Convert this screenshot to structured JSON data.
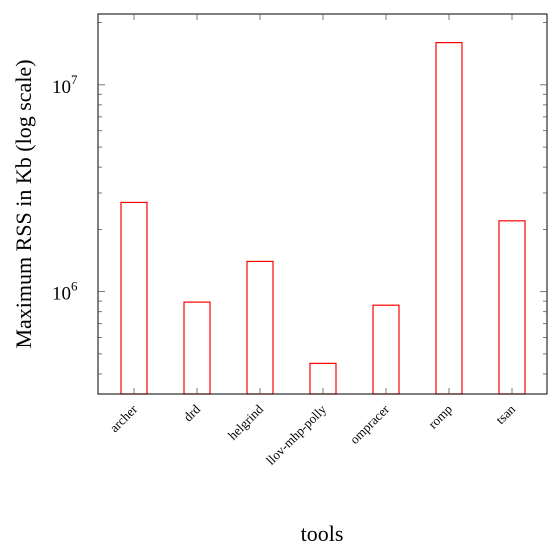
{
  "chart_data": {
    "type": "bar",
    "title": "",
    "xlabel": "tools",
    "ylabel": "Maximum RSS in Kb (log scale)",
    "yscale": "log",
    "ylim": [
      320000,
      22000000
    ],
    "y_ticks": [
      {
        "value": 1000000,
        "base": "10",
        "exp": "6"
      },
      {
        "value": 10000000,
        "base": "10",
        "exp": "7"
      }
    ],
    "categories": [
      "archer",
      "drd",
      "helgrind",
      "llov-mhp-polly",
      "ompracer",
      "romp",
      "tsan"
    ],
    "values": [
      2700000,
      890000,
      1400000,
      450000,
      860000,
      16000000,
      2200000
    ],
    "bar_color": "#ff0000",
    "grid": false,
    "legend": "none"
  }
}
